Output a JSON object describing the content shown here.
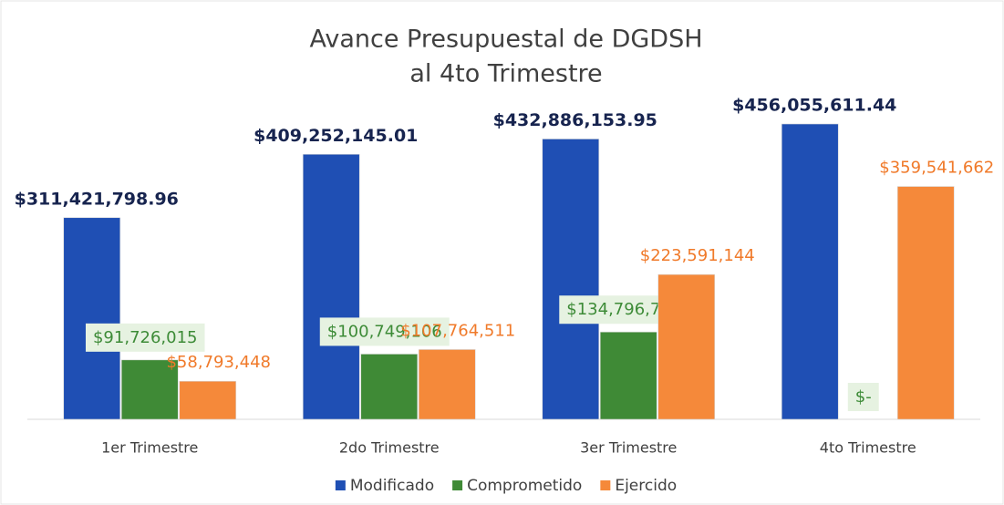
{
  "chart_data": {
    "type": "bar",
    "title": [
      "Avance Presupuestal de DGDSH",
      "al 4to Trimestre"
    ],
    "categories": [
      "1er Trimestre",
      "2do Trimestre",
      "3er Trimestre",
      "4to Trimestre"
    ],
    "series": [
      {
        "name": "Modificado",
        "color": "#1f4fb4",
        "values": [
          311421798.96,
          409252145.01,
          432886153.95,
          456055611.44
        ],
        "value_labels": [
          "$311,421,798.96",
          "$409,252,145.01",
          "$432,886,153.95",
          "$456,055,611.44"
        ]
      },
      {
        "name": "Comprometido",
        "color": "#3f8a36",
        "values": [
          91726015,
          100749106,
          134796797,
          0
        ],
        "value_labels": [
          "$91,726,015",
          "$100,749,106",
          "$134,796,797",
          "$-"
        ]
      },
      {
        "name": "Ejercido",
        "color": "#f5893a",
        "values": [
          58793448,
          107764511,
          223591144,
          359541662
        ],
        "value_labels": [
          "$58,793,448",
          "$107,764,511",
          "$223,591,144",
          "$359,541,662"
        ]
      }
    ],
    "legend": "bottom"
  }
}
